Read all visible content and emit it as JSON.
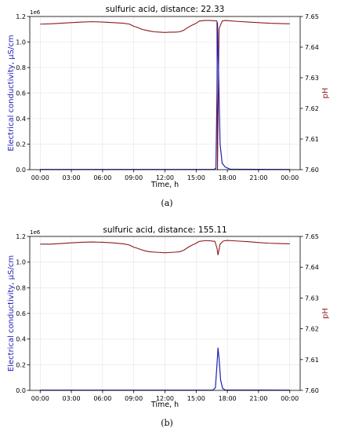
{
  "chart_data": [
    {
      "type": "line",
      "panel_label": "(a)",
      "title": "sulfuric acid, distance: 22.33",
      "xlabel": "Time, h",
      "ylabel": "Electrical conductivity, µS/cm",
      "ylabel_right": "pH",
      "y_offset_label": "1e6",
      "xticks": [
        "00:00",
        "03:00",
        "06:00",
        "09:00",
        "12:00",
        "15:00",
        "18:00",
        "21:00",
        "00:00"
      ],
      "yticks_left": [
        "0.0",
        "0.2",
        "0.4",
        "0.6",
        "0.8",
        "1.0",
        "1.2"
      ],
      "yticks_right": [
        "7.60",
        "7.61",
        "7.62",
        "7.63",
        "7.64",
        "7.65"
      ],
      "xlim_hours": [
        -1,
        25
      ],
      "ylim_left": [
        0,
        1.2
      ],
      "ylim_right": [
        7.6,
        7.65
      ],
      "grid": true,
      "series": [
        {
          "axis": "right",
          "color": "#8b1a1a",
          "x_hours": [
            0,
            1,
            2,
            3,
            4,
            5,
            6,
            7,
            8,
            8.6,
            9,
            9.3,
            9.8,
            10.2,
            10.6,
            11,
            11.5,
            12,
            12.5,
            13,
            13.4,
            13.8,
            14.1,
            14.5,
            15,
            15.3,
            15.8,
            16.3,
            16.8,
            17.0,
            17.05,
            17.2,
            17.5,
            17.8,
            18.2,
            19,
            20,
            21,
            22,
            23,
            24
          ],
          "values": [
            7.6475,
            7.6476,
            7.6478,
            7.648,
            7.6482,
            7.6483,
            7.6482,
            7.648,
            7.6478,
            7.6475,
            7.6468,
            7.6465,
            7.6458,
            7.6455,
            7.6452,
            7.645,
            7.6449,
            7.6448,
            7.6449,
            7.6449,
            7.645,
            7.6455,
            7.6462,
            7.647,
            7.6478,
            7.6485,
            7.6487,
            7.6487,
            7.6486,
            7.6485,
            7.6,
            7.646,
            7.6485,
            7.6487,
            7.6486,
            7.6484,
            7.6482,
            7.648,
            7.6478,
            7.6477,
            7.6476
          ]
        },
        {
          "axis": "left",
          "color": "#1f1fb4",
          "x_hours": [
            0,
            16.7,
            16.9,
            17.0,
            17.05,
            17.15,
            17.3,
            17.5,
            17.8,
            18.3,
            24
          ],
          "values": [
            0.002,
            0.002,
            0.01,
            0.6,
            1.15,
            0.8,
            0.2,
            0.05,
            0.02,
            0.003,
            0.002
          ]
        }
      ]
    },
    {
      "type": "line",
      "panel_label": "(b)",
      "title": "sulfuric acid, distance: 155.11",
      "xlabel": "Time, h",
      "ylabel": "Electrical conductivity, µS/cm",
      "ylabel_right": "pH",
      "y_offset_label": "1e6",
      "xticks": [
        "00:00",
        "03:00",
        "06:00",
        "09:00",
        "12:00",
        "15:00",
        "18:00",
        "21:00",
        "00:00"
      ],
      "yticks_left": [
        "0.0",
        "0.2",
        "0.4",
        "0.6",
        "0.8",
        "1.0",
        "1.2"
      ],
      "yticks_right": [
        "7.60",
        "7.61",
        "7.62",
        "7.63",
        "7.64",
        "7.65"
      ],
      "xlim_hours": [
        -1,
        25
      ],
      "ylim_left": [
        0,
        1.2
      ],
      "ylim_right": [
        7.6,
        7.65
      ],
      "grid": true,
      "series": [
        {
          "axis": "right",
          "color": "#8b1a1a",
          "x_hours": [
            0,
            1,
            2,
            3,
            4,
            5,
            6,
            7,
            8,
            8.6,
            9,
            9.3,
            9.8,
            10.2,
            10.6,
            11,
            11.5,
            12,
            12.5,
            13,
            13.4,
            13.8,
            14.1,
            14.5,
            15,
            15.3,
            15.8,
            16.3,
            16.8,
            17.0,
            17.1,
            17.3,
            17.6,
            18.0,
            18.5,
            19,
            20,
            21,
            22,
            23,
            24
          ],
          "values": [
            7.6475,
            7.6475,
            7.6477,
            7.6479,
            7.6481,
            7.6482,
            7.6481,
            7.6479,
            7.6476,
            7.6472,
            7.6465,
            7.6462,
            7.6456,
            7.6452,
            7.645,
            7.6449,
            7.6448,
            7.6447,
            7.6448,
            7.6449,
            7.645,
            7.6455,
            7.6462,
            7.647,
            7.6478,
            7.6484,
            7.6486,
            7.6486,
            7.6484,
            7.6462,
            7.644,
            7.6475,
            7.6485,
            7.6487,
            7.6486,
            7.6485,
            7.6483,
            7.648,
            7.6478,
            7.6477,
            7.6476
          ]
        },
        {
          "axis": "left",
          "color": "#1f1fb4",
          "x_hours": [
            0,
            16.6,
            16.85,
            17.0,
            17.1,
            17.2,
            17.35,
            17.55,
            17.8,
            24
          ],
          "values": [
            0.002,
            0.002,
            0.02,
            0.2,
            0.33,
            0.25,
            0.08,
            0.015,
            0.003,
            0.002
          ]
        }
      ]
    }
  ]
}
